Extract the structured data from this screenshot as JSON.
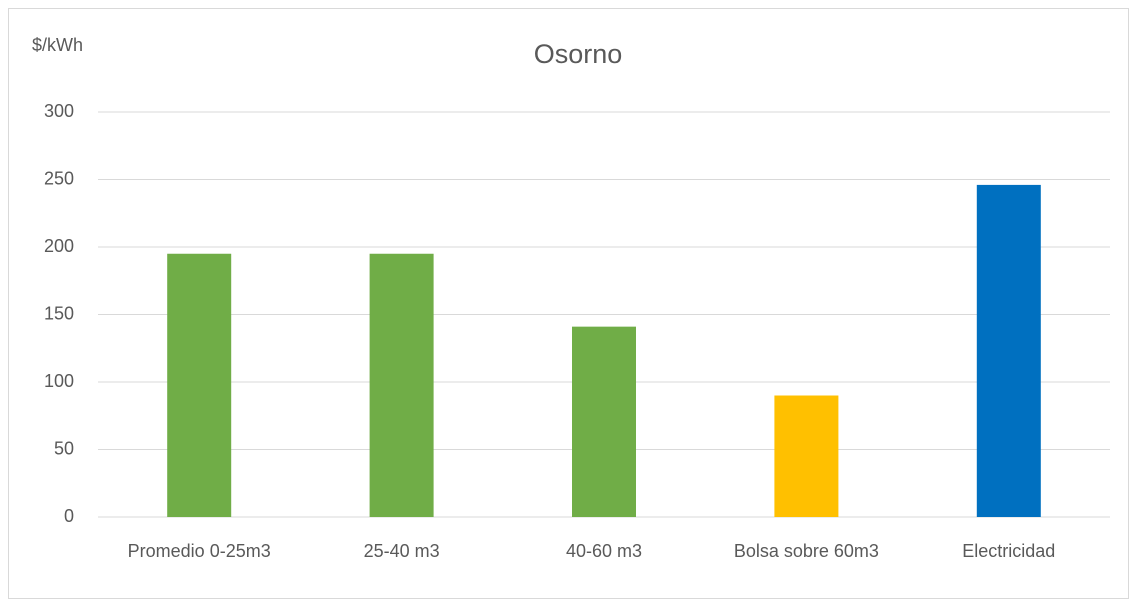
{
  "chart_data": {
    "type": "bar",
    "title": "Osorno",
    "y_label": "$/kWh",
    "categories": [
      "Promedio 0-25m3",
      "25-40 m3",
      "40-60 m3",
      "Bolsa sobre 60m3",
      "Electricidad"
    ],
    "values": [
      195,
      195,
      141,
      90,
      246
    ],
    "colors": [
      "#70ad47",
      "#70ad47",
      "#70ad47",
      "#ffc000",
      "#0070c0"
    ],
    "ylim": [
      0,
      300
    ],
    "yticks": [
      0,
      50,
      100,
      150,
      200,
      250,
      300
    ],
    "grid": true
  }
}
